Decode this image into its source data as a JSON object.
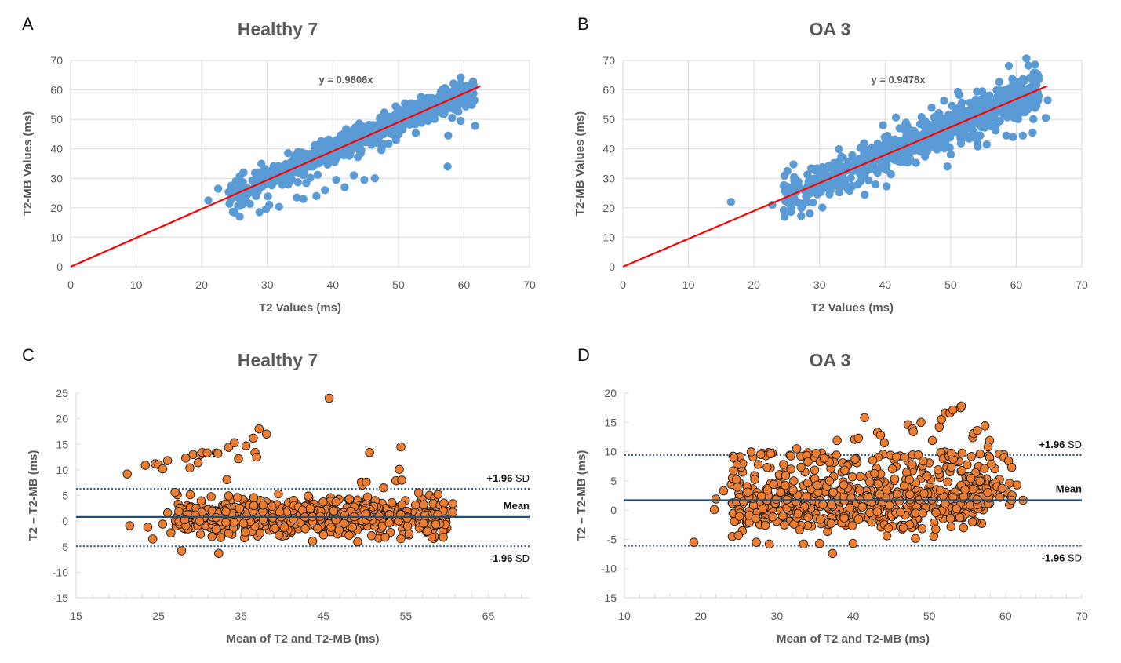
{
  "panels": [
    {
      "letter": "A",
      "title": "Healthy 7"
    },
    {
      "letter": "B",
      "title": "OA 3"
    },
    {
      "letter": "C",
      "title": "Healthy 7"
    },
    {
      "letter": "D",
      "title": "OA 3"
    }
  ],
  "colors": {
    "scatter_blue": "#5B9BD5",
    "fit_line": "#FF0000",
    "ba_orange": "#ED7D31",
    "ba_marker_edge": "#1F1F1F",
    "mean_line": "#1F4E79",
    "sd_line": "#2E5F8A",
    "grid": "#D9D9D9",
    "text": "#595959"
  },
  "chart_data": [
    {
      "id": "A",
      "type": "scatter",
      "title": "Healthy 7",
      "xlabel": "T2 Values (ms)",
      "ylabel": "T2-MB Values (ms)",
      "xlim": [
        0,
        70
      ],
      "ylim": [
        0,
        70
      ],
      "xticks": [
        0,
        10,
        20,
        30,
        40,
        50,
        60,
        70
      ],
      "yticks": [
        0,
        10,
        20,
        30,
        40,
        50,
        60,
        70
      ],
      "grid": true,
      "trendline": {
        "slope": 0.9806,
        "x_range": [
          0,
          62.5
        ],
        "label": "y = 0.9806x"
      },
      "cloud": {
        "x_range": [
          21,
          62.5
        ],
        "slope": 0.98,
        "spread": 2.2,
        "n": 700
      },
      "outliers": [
        [
          21,
          22.5
        ],
        [
          22.5,
          26.5
        ],
        [
          25.8,
          17
        ],
        [
          28.8,
          18.5
        ],
        [
          29.8,
          19.5
        ],
        [
          30.3,
          21
        ],
        [
          31.8,
          20.3
        ],
        [
          34.5,
          23.5
        ],
        [
          35.5,
          23
        ],
        [
          37.5,
          24
        ],
        [
          38.8,
          26
        ],
        [
          40.5,
          29.5
        ],
        [
          41.8,
          27
        ],
        [
          43.2,
          31
        ],
        [
          44.8,
          29.5
        ],
        [
          46.4,
          30
        ],
        [
          57.5,
          34
        ],
        [
          57.6,
          44.5
        ],
        [
          58.2,
          50.5
        ],
        [
          59.5,
          49.5
        ],
        [
          61.7,
          47.8
        ],
        [
          61.6,
          56.5
        ]
      ]
    },
    {
      "id": "B",
      "type": "scatter",
      "title": "OA 3",
      "xlabel": "T2 Values (ms)",
      "ylabel": "T2-MB Values (ms)",
      "xlim": [
        0,
        70
      ],
      "ylim": [
        0,
        70
      ],
      "xticks": [
        0,
        10,
        20,
        30,
        40,
        50,
        60,
        70
      ],
      "yticks": [
        0,
        10,
        20,
        30,
        40,
        50,
        60,
        70
      ],
      "grid": true,
      "trendline": {
        "slope": 0.9478,
        "x_range": [
          0,
          64.7
        ],
        "label": "y = 0.9478x"
      },
      "cloud": {
        "x_range": [
          21.5,
          64.5
        ],
        "slope": 0.95,
        "spread": 3.5,
        "n": 700
      },
      "outliers": [
        [
          16.5,
          22
        ],
        [
          22.8,
          21
        ],
        [
          27.5,
          21
        ],
        [
          29,
          21.8
        ],
        [
          49.5,
          34
        ],
        [
          55.5,
          41.5
        ],
        [
          58.5,
          44.5
        ],
        [
          59.5,
          44
        ],
        [
          61,
          44.5
        ],
        [
          62.5,
          45.5
        ],
        [
          63,
          62
        ],
        [
          61,
          60.5
        ],
        [
          64.5,
          50.5
        ],
        [
          64.8,
          56.5
        ]
      ]
    },
    {
      "id": "C",
      "type": "scatter",
      "subtype": "bland-altman",
      "title": "Healthy 7",
      "xlabel": "Mean of T2 and T2-MB (ms)",
      "ylabel": "T2 – T2-MB (ms)",
      "xlim": [
        15,
        70
      ],
      "ylim": [
        -15,
        25
      ],
      "xticks": [
        15,
        25,
        35,
        45,
        55,
        65
      ],
      "yticks": [
        -15,
        -10,
        -5,
        0,
        5,
        10,
        15,
        20,
        25
      ],
      "grid": false,
      "mean_line": {
        "value": 0.8,
        "label": "Mean"
      },
      "upper_loa": {
        "value": 6.3,
        "label_bold": "+1.96",
        "label_rest": " SD"
      },
      "lower_loa": {
        "value": -4.9,
        "label_bold": "-1.96",
        "label_rest": " SD"
      },
      "cloud": {
        "x_range": [
          27,
          60
        ],
        "center": 0.8,
        "spread": 1.8,
        "n": 650
      },
      "outliers": [
        [
          21.2,
          9.2
        ],
        [
          21.5,
          -0.9
        ],
        [
          23.4,
          10.9
        ],
        [
          23.7,
          -1.2
        ],
        [
          24.3,
          -3.5
        ],
        [
          24.6,
          11.2
        ],
        [
          25.0,
          11.0
        ],
        [
          25.5,
          10.2
        ],
        [
          25.5,
          -0.6
        ],
        [
          26.1,
          11.8
        ],
        [
          26.1,
          1.6
        ],
        [
          26.5,
          -2.3
        ],
        [
          27.0,
          5.6
        ],
        [
          27.8,
          -5.8
        ],
        [
          28.3,
          12.3
        ],
        [
          28.8,
          10.4
        ],
        [
          29.2,
          13.0
        ],
        [
          29.8,
          11.4
        ],
        [
          30.1,
          13.0
        ],
        [
          30.3,
          13.4
        ],
        [
          30.9,
          13.3
        ],
        [
          32.0,
          13.3
        ],
        [
          32.2,
          13.2
        ],
        [
          32.3,
          -6.3
        ],
        [
          33.3,
          8.1
        ],
        [
          33.5,
          14.4
        ],
        [
          34.2,
          15.3
        ],
        [
          34.7,
          12.2
        ],
        [
          35.6,
          14.7
        ],
        [
          36.5,
          16.2
        ],
        [
          36.7,
          13.4
        ],
        [
          36.9,
          12.5
        ],
        [
          37.2,
          18.0
        ],
        [
          38.1,
          17.0
        ],
        [
          45.7,
          24.0
        ],
        [
          50.6,
          13.4
        ],
        [
          54.4,
          14.5
        ],
        [
          54.2,
          10.1
        ],
        [
          53.8,
          7.9
        ],
        [
          54.5,
          8.0
        ],
        [
          49.6,
          7.6
        ],
        [
          50.2,
          7.6
        ],
        [
          52.3,
          6.5
        ],
        [
          60.7,
          3.4
        ],
        [
          60.7,
          1.7
        ],
        [
          58.9,
          5.2
        ]
      ]
    },
    {
      "id": "D",
      "type": "scatter",
      "subtype": "bland-altman",
      "title": "OA 3",
      "xlabel": "Mean of T2 and T2-MB (ms)",
      "ylabel": "T2 – T2-MB (ms)",
      "xlim": [
        10,
        70
      ],
      "ylim": [
        -15,
        20
      ],
      "xticks": [
        10,
        20,
        30,
        40,
        50,
        60,
        70
      ],
      "yticks": [
        -15,
        -10,
        -5,
        0,
        5,
        10,
        15,
        20
      ],
      "grid": false,
      "mean_line": {
        "value": 1.7,
        "label": "Mean"
      },
      "upper_loa": {
        "value": 9.4,
        "label_bold": "+1.96",
        "label_rest": " SD"
      },
      "lower_loa": {
        "value": -6.1,
        "label_bold": "-1.96",
        "label_rest": " SD"
      },
      "cloud": {
        "x_range": [
          24,
          58
        ],
        "center": 0.8,
        "spread": 2.2,
        "n": 450
      },
      "upper_cloud": {
        "x_range": [
          24,
          61
        ],
        "y_range": [
          2,
          10
        ],
        "n": 230
      },
      "outliers": [
        [
          19.1,
          -5.5
        ],
        [
          21.8,
          0.1
        ],
        [
          22.0,
          1.9
        ],
        [
          23.0,
          3.3
        ],
        [
          24.3,
          6.7
        ],
        [
          32.6,
          10.5
        ],
        [
          37.9,
          11.9
        ],
        [
          40.2,
          12.1
        ],
        [
          40.7,
          12.3
        ],
        [
          41.5,
          15.8
        ],
        [
          43.2,
          13.3
        ],
        [
          43.6,
          12.8
        ],
        [
          44.1,
          11.5
        ],
        [
          47.2,
          14.6
        ],
        [
          47.8,
          13.9
        ],
        [
          47.9,
          13.4
        ],
        [
          48.9,
          15.0
        ],
        [
          50.4,
          11.9
        ],
        [
          51.3,
          14.2
        ],
        [
          51.6,
          15.5
        ],
        [
          52.1,
          16.6
        ],
        [
          52.7,
          16.6
        ],
        [
          53.1,
          17.1
        ],
        [
          54.1,
          17.5
        ],
        [
          54.2,
          17.8
        ],
        [
          55.7,
          12.4
        ],
        [
          55.8,
          13.1
        ],
        [
          56.3,
          13.6
        ],
        [
          57.3,
          14.4
        ],
        [
          57.9,
          11.9
        ],
        [
          57.7,
          10.8
        ],
        [
          59.8,
          9.0
        ],
        [
          60.4,
          8.4
        ],
        [
          60.8,
          7.3
        ],
        [
          61.5,
          4.3
        ],
        [
          60.5,
          0.9
        ],
        [
          60.8,
          1.7
        ],
        [
          62.3,
          1.7
        ],
        [
          37.3,
          -7.4
        ],
        [
          40.0,
          -5.7
        ],
        [
          29.0,
          -5.8
        ],
        [
          27.3,
          -5.5
        ],
        [
          33.5,
          -5.8
        ],
        [
          35.6,
          -5.7
        ],
        [
          46.6,
          -3.0
        ]
      ]
    }
  ]
}
